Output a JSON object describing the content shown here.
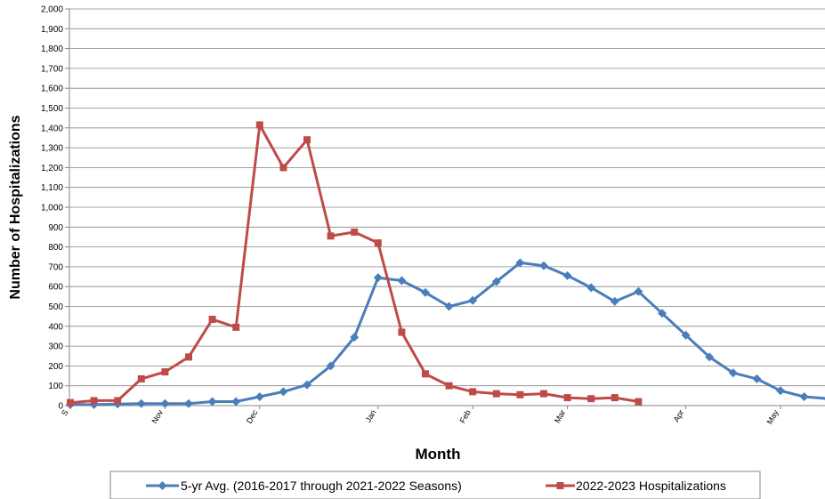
{
  "chart_data": {
    "type": "line",
    "xlabel": "Month",
    "ylabel": "Number of Hospitalizations",
    "ylim": [
      0,
      2000
    ],
    "ytick_step": 100,
    "ytick_labels": [
      "0",
      "100",
      "200",
      "300",
      "400",
      "500",
      "600",
      "700",
      "800",
      "900",
      "1,000",
      "1,100",
      "1,200",
      "1,300",
      "1,400",
      "1,500",
      "1,600",
      "1,700",
      "1,800",
      "1,900",
      "2,000"
    ],
    "grid": true,
    "legend_position": "bottom",
    "xtick_labels": [
      {
        "label": "S",
        "week": 0
      },
      {
        "label": "Nov",
        "week": 4
      },
      {
        "label": "Dec",
        "week": 8
      },
      {
        "label": "Jan",
        "week": 13
      },
      {
        "label": "Feb",
        "week": 17
      },
      {
        "label": "Mar",
        "week": 21
      },
      {
        "label": "Apr",
        "week": 26
      },
      {
        "label": "May",
        "week": 30
      }
    ],
    "series": [
      {
        "name": "5-yr Avg. (2016-2017 through 2021-2022 Seasons)",
        "color": "#4a7ebb",
        "marker": "diamond",
        "values": [
          5,
          5,
          8,
          10,
          10,
          10,
          20,
          20,
          45,
          70,
          105,
          200,
          345,
          645,
          630,
          570,
          500,
          530,
          625,
          720,
          705,
          655,
          595,
          525,
          575,
          465,
          355,
          245,
          165,
          135,
          75,
          45,
          35
        ]
      },
      {
        "name": "2022-2023 Hospitalizations",
        "color": "#be4b48",
        "marker": "square",
        "values": [
          15,
          25,
          25,
          135,
          170,
          245,
          435,
          395,
          1415,
          1200,
          1340,
          855,
          875,
          820,
          370,
          160,
          100,
          70,
          60,
          55,
          60,
          40,
          35,
          40,
          20
        ]
      }
    ]
  }
}
